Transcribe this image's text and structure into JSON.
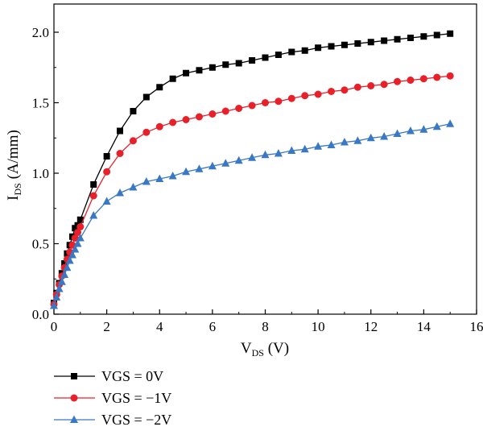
{
  "chart_data": {
    "type": "line",
    "xlabel": {
      "main": "V",
      "sub": "DS",
      "unit": " (V)"
    },
    "ylabel": {
      "main": "I",
      "sub": "DS",
      "unit": " (A/mm)"
    },
    "xlim": [
      0,
      16
    ],
    "ylim": [
      0,
      2.2
    ],
    "xticks": [
      0,
      2,
      4,
      6,
      8,
      10,
      12,
      14,
      16
    ],
    "yticks": [
      0.0,
      0.5,
      1.0,
      1.5,
      2.0
    ],
    "xtick_labels": [
      "0",
      "2",
      "4",
      "6",
      "8",
      "10",
      "12",
      "14",
      "16"
    ],
    "ytick_labels": [
      "0.0",
      "0.5",
      "1.0",
      "1.5",
      "2.0"
    ],
    "grid": false,
    "legend_position": "bottom-left",
    "series": [
      {
        "name": "VGS = 0V",
        "color": "#000000",
        "marker": "square",
        "x": [
          0,
          0.1,
          0.2,
          0.3,
          0.4,
          0.5,
          0.6,
          0.7,
          0.8,
          0.9,
          1.0,
          1.5,
          2.0,
          2.5,
          3.0,
          3.5,
          4.0,
          4.5,
          5.0,
          5.5,
          6.0,
          6.5,
          7.0,
          7.5,
          8.0,
          8.5,
          9.0,
          9.5,
          10.0,
          10.5,
          11.0,
          11.5,
          12.0,
          12.5,
          13.0,
          13.5,
          14.0,
          14.5,
          15.0
        ],
        "y": [
          0.08,
          0.15,
          0.22,
          0.29,
          0.36,
          0.43,
          0.49,
          0.55,
          0.61,
          0.63,
          0.67,
          0.92,
          1.12,
          1.3,
          1.44,
          1.54,
          1.61,
          1.67,
          1.71,
          1.73,
          1.75,
          1.77,
          1.78,
          1.8,
          1.82,
          1.84,
          1.86,
          1.87,
          1.89,
          1.9,
          1.91,
          1.92,
          1.93,
          1.94,
          1.95,
          1.96,
          1.97,
          1.98,
          1.99
        ]
      },
      {
        "name": "VGS = −1V",
        "color": "#e8202a",
        "marker": "circle",
        "x": [
          0,
          0.1,
          0.2,
          0.3,
          0.4,
          0.5,
          0.6,
          0.7,
          0.8,
          0.9,
          1.0,
          1.5,
          2.0,
          2.5,
          3.0,
          3.5,
          4.0,
          4.5,
          5.0,
          5.5,
          6.0,
          6.5,
          7.0,
          7.5,
          8.0,
          8.5,
          9.0,
          9.5,
          10.0,
          10.5,
          11.0,
          11.5,
          12.0,
          12.5,
          13.0,
          13.5,
          14.0,
          14.5,
          15.0
        ],
        "y": [
          0.07,
          0.14,
          0.21,
          0.27,
          0.33,
          0.39,
          0.44,
          0.49,
          0.54,
          0.58,
          0.62,
          0.84,
          1.01,
          1.14,
          1.23,
          1.29,
          1.33,
          1.36,
          1.38,
          1.4,
          1.42,
          1.44,
          1.46,
          1.48,
          1.5,
          1.51,
          1.53,
          1.55,
          1.56,
          1.58,
          1.59,
          1.61,
          1.62,
          1.63,
          1.65,
          1.66,
          1.67,
          1.68,
          1.69
        ]
      },
      {
        "name": "VGS = −2V",
        "color": "#3a78c3",
        "marker": "triangle",
        "x": [
          0,
          0.1,
          0.2,
          0.3,
          0.4,
          0.5,
          0.6,
          0.7,
          0.8,
          0.9,
          1.0,
          1.5,
          2.0,
          2.5,
          3.0,
          3.5,
          4.0,
          4.5,
          5.0,
          5.5,
          6.0,
          6.5,
          7.0,
          7.5,
          8.0,
          8.5,
          9.0,
          9.5,
          10.0,
          10.5,
          11.0,
          11.5,
          12.0,
          12.5,
          13.0,
          13.5,
          14.0,
          14.5,
          15.0
        ],
        "y": [
          0.06,
          0.12,
          0.18,
          0.23,
          0.28,
          0.33,
          0.38,
          0.42,
          0.46,
          0.5,
          0.54,
          0.7,
          0.8,
          0.86,
          0.9,
          0.94,
          0.96,
          0.98,
          1.01,
          1.03,
          1.05,
          1.07,
          1.09,
          1.11,
          1.13,
          1.14,
          1.16,
          1.17,
          1.19,
          1.2,
          1.22,
          1.23,
          1.25,
          1.26,
          1.28,
          1.3,
          1.31,
          1.33,
          1.35
        ]
      }
    ]
  }
}
